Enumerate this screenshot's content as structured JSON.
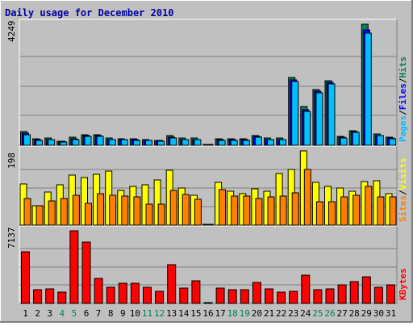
{
  "chart_data": {
    "type": "bar",
    "title": "Daily usage for December 2010",
    "categories": [
      "1",
      "2",
      "3",
      "4",
      "5",
      "6",
      "7",
      "8",
      "9",
      "10",
      "11",
      "12",
      "13",
      "14",
      "15",
      "16",
      "17",
      "18",
      "19",
      "20",
      "21",
      "22",
      "23",
      "24",
      "25",
      "26",
      "27",
      "28",
      "29",
      "30",
      "31"
    ],
    "weekend_days": [
      "4",
      "5",
      "11",
      "12",
      "18",
      "19",
      "25",
      "26"
    ],
    "panels": [
      {
        "id": "requests",
        "max_label": "4249",
        "ylim": [
          0,
          4249
        ],
        "series": [
          {
            "name": "Hits",
            "color": "#00805c",
            "values": [
              490,
              230,
              260,
              150,
              270,
              360,
              360,
              250,
              230,
              230,
              200,
              180,
              350,
              250,
              250,
              0,
              230,
              230,
              230,
              340,
              250,
              250,
              2380,
              1350,
              1960,
              2280,
              320,
              520,
              4249,
              400,
              290
            ]
          },
          {
            "name": "Files",
            "color": "#0000ff",
            "values": [
              430,
              190,
              210,
              140,
              230,
              330,
              330,
              210,
              210,
              200,
              180,
              160,
              290,
              210,
              210,
              0,
              190,
              190,
              190,
              300,
              210,
              210,
              2300,
              1250,
              1900,
              2200,
              270,
              480,
              4050,
              350,
              250
            ]
          },
          {
            "name": "Pages",
            "color": "#00bfff",
            "values": [
              380,
              170,
              190,
              120,
              210,
              300,
              300,
              190,
              190,
              180,
              160,
              150,
              250,
              190,
              190,
              0,
              170,
              170,
              170,
              270,
              190,
              190,
              2250,
              1200,
              1850,
              2150,
              250,
              450,
              3950,
              330,
              230
            ]
          }
        ],
        "axis_labels": [
          {
            "text": "Hits",
            "color": "#00805c"
          },
          {
            "text": "/",
            "color": "#000000"
          },
          {
            "text": "Files",
            "color": "#0000ff"
          },
          {
            "text": "/",
            "color": "#000000"
          },
          {
            "text": "Pages",
            "color": "#00bfff"
          }
        ]
      },
      {
        "id": "visits",
        "max_label": "198",
        "ylim": [
          0,
          198
        ],
        "series": [
          {
            "name": "Visits",
            "color": "#ffff00",
            "values": [
              110,
              52,
              88,
              108,
              133,
              128,
              136,
              145,
              92,
              103,
              108,
              120,
              146,
              100,
              80,
              0,
              114,
              90,
              84,
              96,
              90,
              137,
              148,
              198,
              114,
              104,
              100,
              90,
              117,
              118,
              83
            ]
          },
          {
            "name": "Sites",
            "color": "#ff8000",
            "values": [
              70,
              52,
              65,
              70,
              80,
              58,
              84,
              80,
              78,
              75,
              57,
              57,
              92,
              82,
              68,
              0,
              94,
              78,
              78,
              70,
              75,
              78,
              87,
              148,
              62,
              62,
              76,
              80,
              104,
              75,
              75
            ]
          }
        ],
        "axis_labels": [
          {
            "text": "Visits",
            "color": "#ffff00"
          },
          {
            "text": "/",
            "color": "#000000"
          },
          {
            "text": "Sites",
            "color": "#ff8000"
          }
        ]
      },
      {
        "id": "kbytes",
        "max_label": "7137",
        "ylim": [
          0,
          7137
        ],
        "series": [
          {
            "name": "KBytes",
            "color": "#ff0000",
            "values": [
              5050,
              1310,
              1410,
              1100,
              7137,
              6000,
              2480,
              1620,
              2000,
              2000,
              1620,
              1180,
              3780,
              1520,
              2260,
              0,
              1480,
              1380,
              1330,
              2050,
              1450,
              1130,
              1170,
              2760,
              1340,
              1460,
              1800,
              2120,
              2630,
              1620,
              1840
            ]
          }
        ],
        "axis_labels": [
          {
            "text": "KBytes",
            "color": "#ff0000"
          }
        ]
      }
    ],
    "colors": {
      "background": "#c0c0c0",
      "frame": "#ffffff",
      "title": "#0000a0",
      "weekday_label": "#000000",
      "weekend_label": "#00805c"
    }
  }
}
